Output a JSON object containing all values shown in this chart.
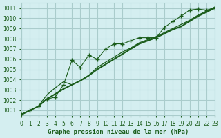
{
  "title": "Graphe pression niveau de la mer (hPa)",
  "bg_color": "#d4eef0",
  "grid_color": "#aacccc",
  "line_color": "#1a5c1a",
  "xlim": [
    0,
    23
  ],
  "ylim": [
    1000.5,
    1011.5
  ],
  "yticks": [
    1001,
    1002,
    1003,
    1004,
    1005,
    1006,
    1007,
    1008,
    1009,
    1010,
    1011
  ],
  "xticks": [
    0,
    1,
    2,
    3,
    4,
    5,
    6,
    7,
    8,
    9,
    10,
    11,
    12,
    13,
    14,
    15,
    16,
    17,
    18,
    19,
    20,
    21,
    22,
    23
  ],
  "series1_x": [
    0,
    1,
    2,
    3,
    4,
    5,
    6,
    7,
    8,
    9,
    10,
    11,
    12,
    13,
    14,
    15,
    16,
    17,
    18,
    19,
    20,
    21,
    22,
    23
  ],
  "series1_y": [
    1000.6,
    1001.0,
    1001.4,
    1002.1,
    1002.3,
    1003.5,
    1005.9,
    1005.2,
    1006.4,
    1006.0,
    1007.0,
    1007.5,
    1007.5,
    1007.8,
    1008.1,
    1008.1,
    1008.1,
    1009.1,
    1009.7,
    1010.2,
    1010.8,
    1010.9,
    1010.8,
    1011.0
  ],
  "series2_x": [
    0,
    1,
    2,
    3,
    4,
    5,
    6,
    7,
    8,
    9,
    10,
    11,
    12,
    13,
    14,
    15,
    16,
    17,
    18,
    19,
    20,
    21,
    22,
    23
  ],
  "series2_y": [
    1000.6,
    1001.0,
    1001.4,
    1002.1,
    1002.6,
    1003.1,
    1003.5,
    1003.9,
    1004.4,
    1005.0,
    1005.5,
    1006.0,
    1006.5,
    1007.0,
    1007.5,
    1007.8,
    1008.1,
    1008.5,
    1008.9,
    1009.2,
    1009.7,
    1010.2,
    1010.6,
    1011.0
  ],
  "series3_x": [
    0,
    1,
    2,
    3,
    4,
    5,
    6,
    7,
    8,
    9,
    10,
    11,
    12,
    13,
    14,
    15,
    16,
    17,
    18,
    19,
    20,
    21,
    22,
    23
  ],
  "series3_y": [
    1000.6,
    1001.0,
    1001.4,
    1002.5,
    1003.2,
    1003.8,
    1003.5,
    1003.9,
    1004.4,
    1005.2,
    1005.7,
    1006.2,
    1006.7,
    1007.1,
    1007.6,
    1007.9,
    1008.2,
    1008.6,
    1009.0,
    1009.4,
    1009.8,
    1010.3,
    1010.7,
    1011.1
  ]
}
